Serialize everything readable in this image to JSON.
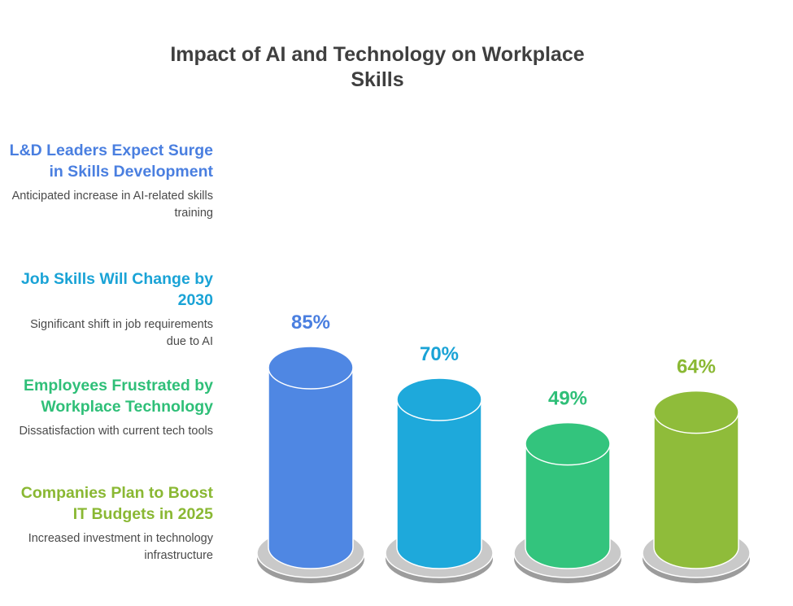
{
  "title": "Impact of AI and Technology on Workplace Skills",
  "legend": [
    {
      "heading": "L&D Leaders Expect Surge in Skills Development",
      "description": "Anticipated increase in AI-related skills training"
    },
    {
      "heading": "Job Skills Will Change by 2030",
      "description": "Significant shift in job requirements due to AI"
    },
    {
      "heading": "Employees Frustrated by Workplace Technology",
      "description": "Dissatisfaction with current tech tools"
    },
    {
      "heading": "Companies Plan to Boost IT Budgets in 2025",
      "description": "Increased investment in technology infrastructure"
    }
  ],
  "chart_data": {
    "type": "bar",
    "style": "3d-cylinder",
    "title": "Impact of AI and Technology on Workplace Skills",
    "categories": [
      "L&D Leaders Expect Surge in Skills Development",
      "Job Skills Will Change by 2030",
      "Employees Frustrated by Workplace Technology",
      "Companies Plan to Boost IT Budgets in 2025"
    ],
    "values": [
      85,
      70,
      49,
      64
    ],
    "value_labels": [
      "85%",
      "70%",
      "49%",
      "64%"
    ],
    "colors": [
      "#4F87E3",
      "#1EA9DB",
      "#33C47D",
      "#8FBC3A"
    ],
    "label_colors": [
      "#4A7FE0",
      "#1AA3D6",
      "#2FBF78",
      "#8AB833"
    ],
    "unit": "%",
    "grid": false,
    "axes": false
  }
}
